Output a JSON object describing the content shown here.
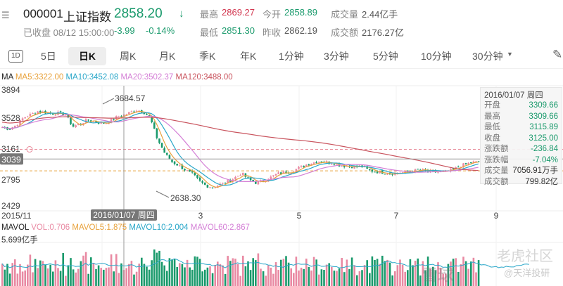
{
  "header": {
    "menu_icon": "search-list-icon",
    "code": "000001",
    "name": "上证指数",
    "price": "2858.20",
    "trend_icon": "arrow-down-icon",
    "status": "已收盘 08/12 15:00:00",
    "change": "-3.99",
    "change_pct": "-0.14%",
    "stats": [
      {
        "label": "最高",
        "value": "2869.27",
        "color": "#d2364f"
      },
      {
        "label": "最低",
        "value": "2851.30",
        "color": "#1a9a6c"
      },
      {
        "label": "今开",
        "value": "2858.89",
        "color": "#1a9a6c"
      },
      {
        "label": "昨收",
        "value": "2862.19",
        "color": "#555555"
      },
      {
        "label": "成交量",
        "value": "2.44亿手",
        "color": "#555555"
      },
      {
        "label": "成交额",
        "value": "2176.27亿",
        "color": "#555555"
      }
    ]
  },
  "tabs": {
    "items": [
      "1D",
      "5日",
      "日K",
      "周K",
      "月K",
      "季K",
      "年K",
      "1分钟",
      "3分钟",
      "5分钟",
      "10分钟",
      "30分钟"
    ],
    "active": "日K",
    "draw_icon": "pen-icon"
  },
  "ma_legend": {
    "title": "MA",
    "items": [
      {
        "label": "MA5:3322.00",
        "color": "#e8a23c"
      },
      {
        "label": "MA10:3452.08",
        "color": "#2aa7c9"
      },
      {
        "label": "MA20:3502.37",
        "color": "#d47fd6"
      },
      {
        "label": "MA120:3488.00",
        "color": "#c9545e"
      }
    ]
  },
  "vol_legend": {
    "title": "MAVOL",
    "items": [
      {
        "label": "VOL:0.706",
        "color": "#e98aa3"
      },
      {
        "label": "MAVOL5:1.875",
        "color": "#e8a23c"
      },
      {
        "label": "MAVOL10:2.004",
        "color": "#2aa7c9"
      },
      {
        "label": "MAVOL60:2.867",
        "color": "#d47fd6"
      }
    ],
    "max_label": "5.699亿手"
  },
  "tooltip": {
    "date": "2016/01/07 周四",
    "rows": [
      {
        "label": "开盘",
        "value": "3309.66"
      },
      {
        "label": "最高",
        "value": "3309.66"
      },
      {
        "label": "最低",
        "value": "3115.89"
      },
      {
        "label": "收盘",
        "value": "3125.00"
      },
      {
        "label": "涨跌额",
        "value": "-236.84"
      },
      {
        "label": "涨跌幅",
        "value": "-7.04%"
      },
      {
        "label": "成交量",
        "value": "7056.91万手"
      },
      {
        "label": "成交额",
        "value": "799.82亿"
      }
    ]
  },
  "watermarks": [
    "雪球",
    "老虎社区",
    "@天洋投研"
  ],
  "chart_data": {
    "type": "candlestick",
    "y_ticks": [
      "3894",
      "3528",
      "3161",
      "2795",
      "2429"
    ],
    "ylim": [
      2429,
      3894
    ],
    "x_ticks": [
      "2015/11",
      "3",
      "5",
      "7",
      "9"
    ],
    "crosshair": {
      "date": "2016/01/07 周四",
      "price": "3039"
    },
    "annotations": [
      {
        "label": "3684.57",
        "type": "high"
      },
      {
        "label": "2638.30",
        "type": "low"
      }
    ],
    "reference_lines": [
      {
        "price": 3161,
        "color": "#e88a9a"
      },
      {
        "price": 2890,
        "color": "#e8a23c"
      }
    ],
    "colors": {
      "up": "#e98aa3",
      "down": "#1a9a6c"
    },
    "approx_closes": [
      3440,
      3420,
      3470,
      3560,
      3600,
      3640,
      3630,
      3610,
      3620,
      3600,
      3450,
      3480,
      3530,
      3520,
      3490,
      3500,
      3560,
      3590,
      3620,
      3660,
      3640,
      3560,
      3300,
      3125,
      3010,
      2960,
      2900,
      2850,
      2760,
      2700,
      2680,
      2720,
      2750,
      2800,
      2860,
      2780,
      2740,
      2760,
      2800,
      2850,
      2870,
      2880,
      2920,
      2960,
      2990,
      3010,
      3000,
      2990,
      2960,
      2950,
      2940,
      2950,
      2900,
      2880,
      2870,
      2860,
      2860,
      2870,
      2880,
      2900,
      2890,
      2880,
      2870,
      2880,
      2900,
      2950,
      2980,
      3000,
      3000,
      2990,
      2990,
      3000,
      3020,
      3060,
      3060,
      3050
    ]
  }
}
